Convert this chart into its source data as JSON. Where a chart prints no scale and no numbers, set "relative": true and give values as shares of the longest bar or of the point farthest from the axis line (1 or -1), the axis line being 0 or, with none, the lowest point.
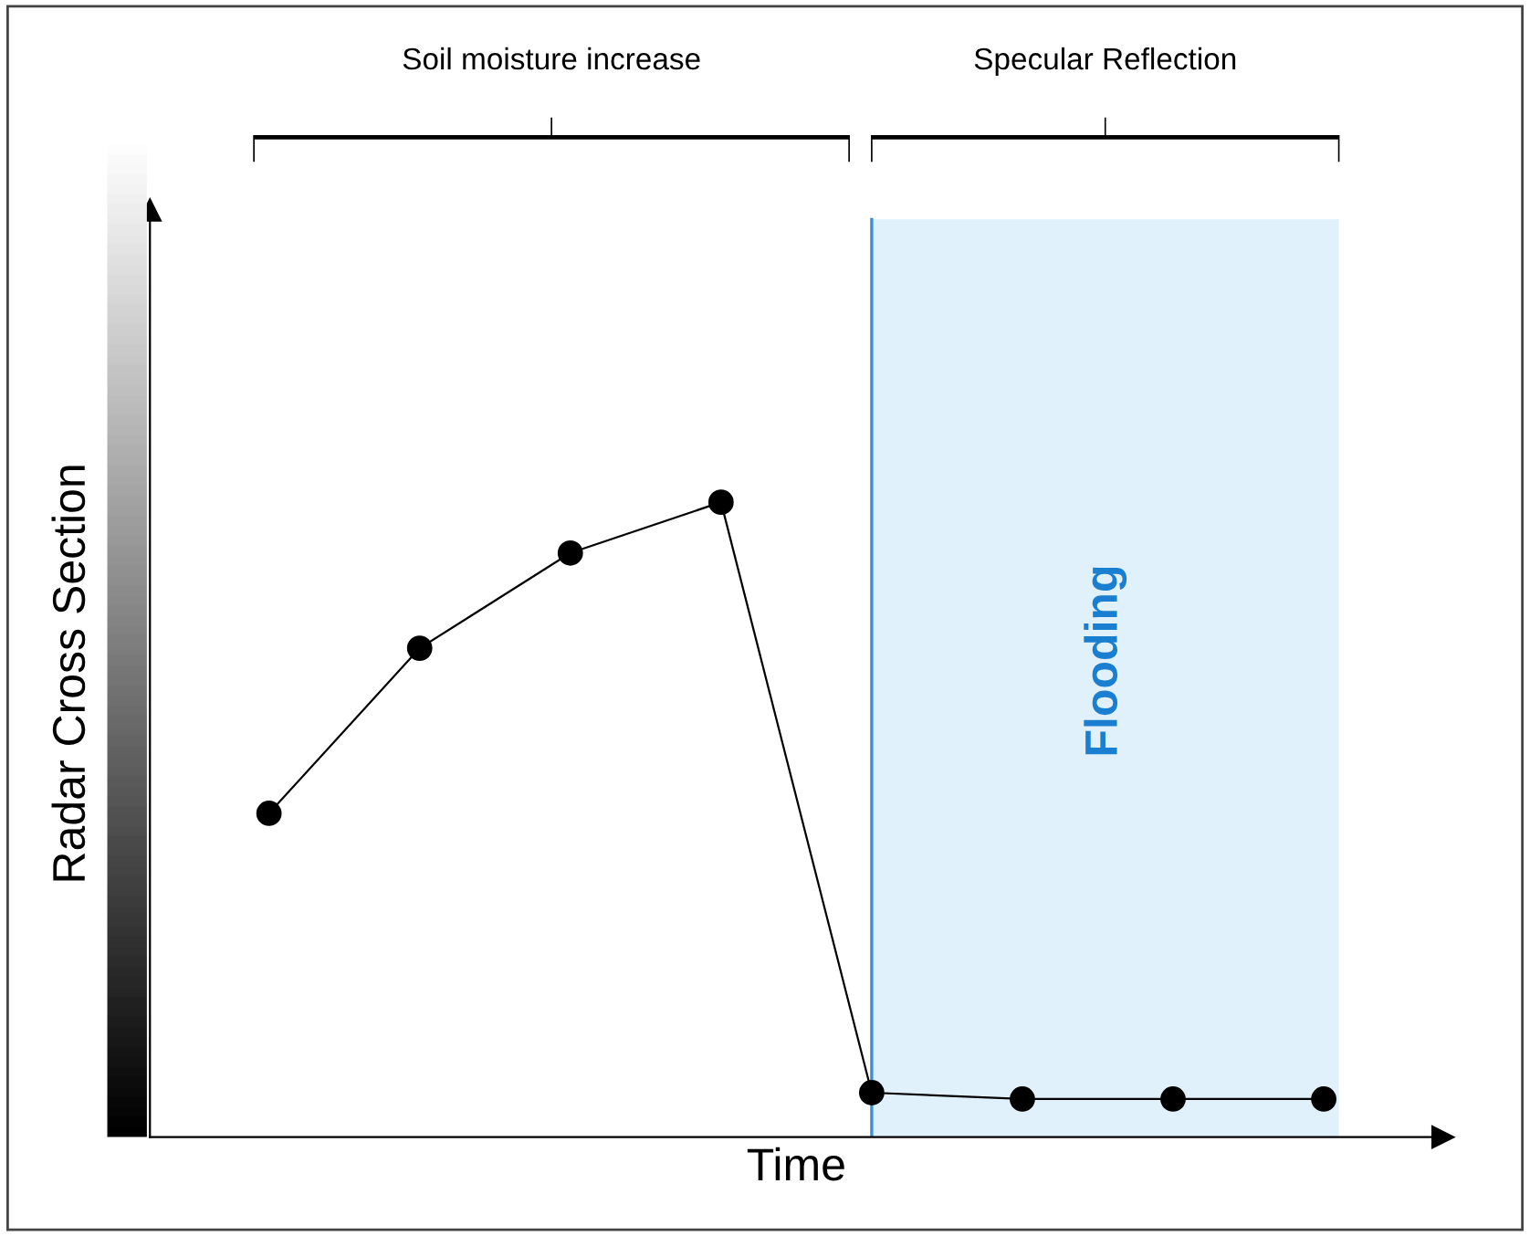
{
  "chart_data": {
    "type": "line",
    "xlabel": "Time",
    "ylabel": "Radar Cross Section",
    "relative": true,
    "categories": [
      null,
      null,
      null,
      null,
      null,
      null,
      null,
      null
    ],
    "series": [
      {
        "color": "#000000",
        "values": [
          0.51,
          0.77,
          0.92,
          1,
          0.07,
          0.06,
          0.06,
          0.06
        ]
      }
    ],
    "marker": "circle",
    "line_style": "solid",
    "grid": false,
    "tick_labels": false,
    "annotations": [
      "Soil moisture increase",
      "Specular Reflection",
      "Flooding"
    ]
  }
}
